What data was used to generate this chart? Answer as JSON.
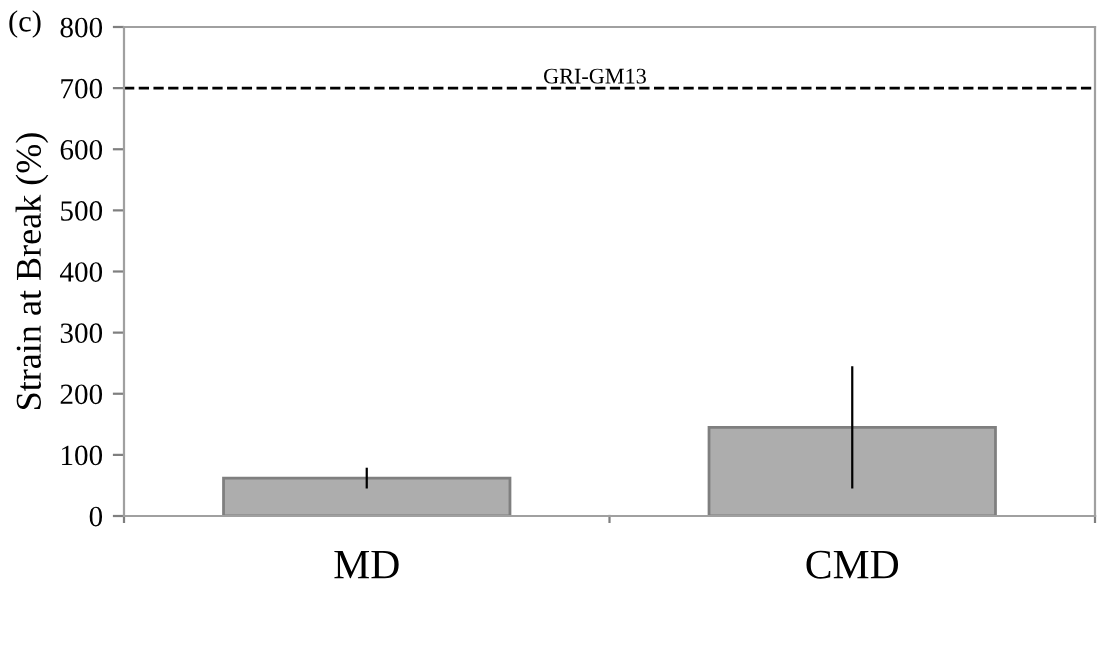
{
  "chart_data": {
    "type": "bar",
    "ylabel": "Strain at Break (%)",
    "categories": [
      "MD",
      "CMD"
    ],
    "values": [
      62,
      145
    ],
    "errors": [
      17,
      100
    ],
    "color": "#adadad",
    "ylim": [
      0,
      800
    ],
    "yticks": [
      0,
      100,
      200,
      300,
      400,
      500,
      600,
      700,
      800
    ],
    "ref_lines": [
      {
        "axis": "y",
        "value": 700,
        "label": "GRI-GM13",
        "color": "#000000",
        "line_style": "dashed"
      }
    ],
    "annotations": [
      "(c)"
    ],
    "grid": false
  }
}
